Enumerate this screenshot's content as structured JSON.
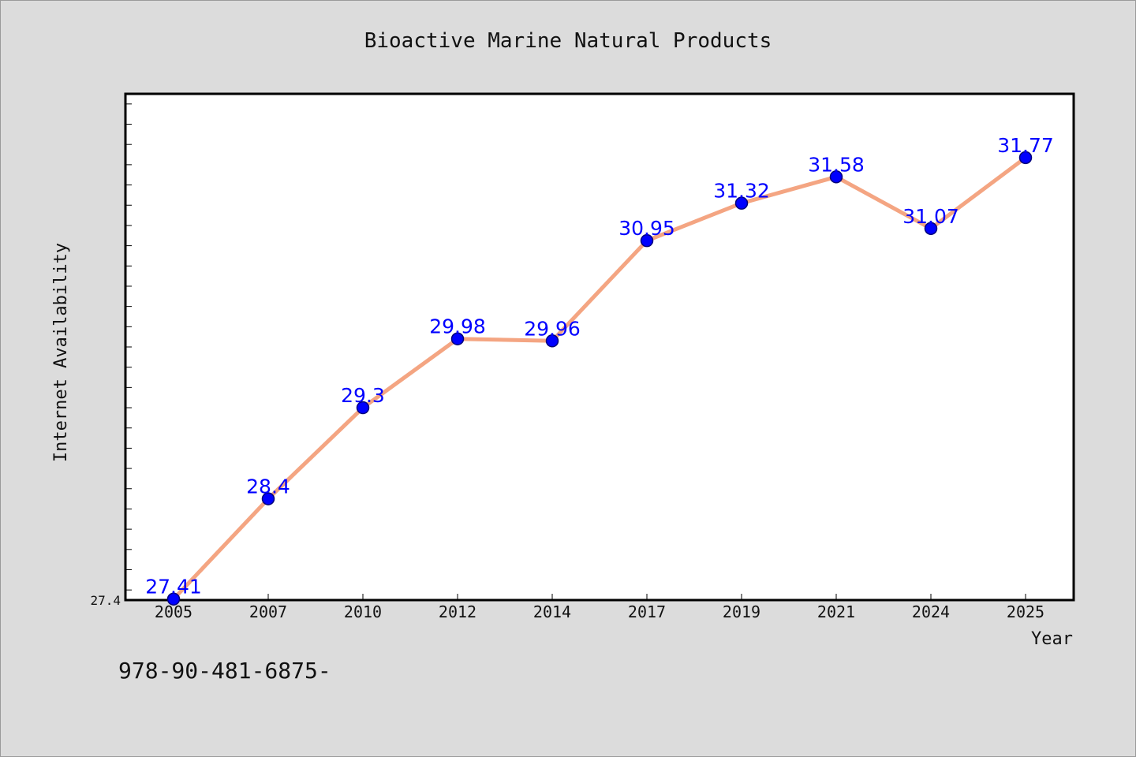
{
  "chart_data": {
    "type": "line",
    "title": "Bioactive Marine Natural Products",
    "xlabel": "Year",
    "ylabel": "Internet Availability",
    "categories": [
      "2005",
      "2007",
      "2010",
      "2012",
      "2014",
      "2017",
      "2019",
      "2021",
      "2024",
      "2025"
    ],
    "series": [
      {
        "values": [
          27.41,
          28.4,
          29.3,
          29.98,
          29.96,
          30.95,
          31.32,
          31.58,
          31.07,
          31.77
        ],
        "data_labels": [
          "27.41",
          "28.4",
          "29.3",
          "29.98",
          "29.96",
          "30.95",
          "31.32",
          "31.58",
          "31.07",
          "31.77"
        ]
      }
    ],
    "y_tick_labels": [
      "27.4"
    ],
    "ylim": [
      27.4,
      32.4
    ],
    "grid": false,
    "legend": "none",
    "colors": {
      "line": "#f4a582",
      "marker": "#0000ff",
      "data_label": "#0000ff",
      "background": "#dcdcdc",
      "plot_background": "#ffffff"
    }
  },
  "footnote": "978-90-481-6875-"
}
